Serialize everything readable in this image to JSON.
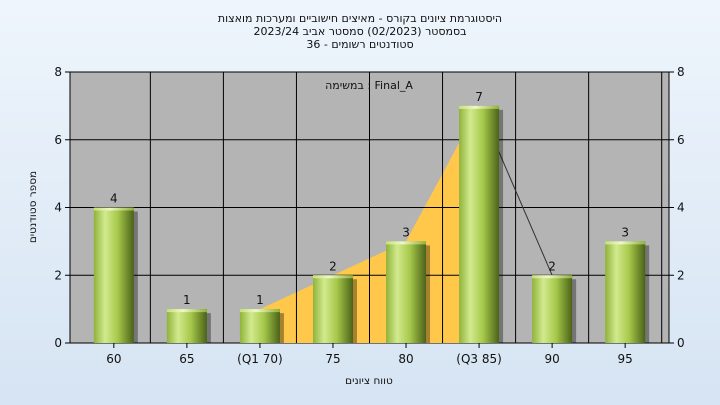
{
  "chart_data": {
    "type": "bar",
    "title_lines": [
      "היסטוגרמת ציונים בקורס - מאיצים חישוביים ומערכות מואצות",
      "בסמסטר  (02/2023)  סמסטר אביב 2023/24",
      "סטודנטים רשומים - 36"
    ],
    "annotation": "במשימה : Final_A",
    "xlabel": "טווח ציונים",
    "ylabel": "מספר סטודנטים",
    "categories": [
      "60",
      "65",
      "(Q1 70)",
      "75",
      "80",
      "(Q3 85)",
      "90",
      "95"
    ],
    "values": [
      4,
      1,
      1,
      2,
      3,
      7,
      2,
      3
    ],
    "ylim": [
      0,
      8
    ],
    "yticks": [
      0,
      2,
      4,
      6,
      8
    ],
    "grid": true,
    "bar_color": "#a6c84a",
    "plot_bg": "#b4b4b4",
    "area_color": "#ffc84a",
    "iqr_area": {
      "from_index": 2,
      "to_index": 5
    },
    "connector_line": {
      "from_index": 5,
      "to_index": 6
    }
  }
}
